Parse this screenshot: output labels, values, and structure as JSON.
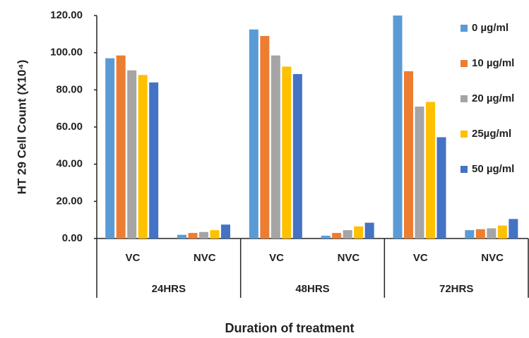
{
  "chart_data": {
    "type": "bar",
    "y_label": "HT 29 Cell Count (X10⁴)",
    "x_label": "Duration of treatment",
    "categories": [
      "VC",
      "NVC",
      "VC",
      "NVC",
      "VC",
      "NVC"
    ],
    "groups": [
      "24HRS",
      "48HRS",
      "72HRS"
    ],
    "series": [
      {
        "name": "0 µg/ml",
        "color": "#5b9bd5",
        "values": [
          97,
          2,
          112.5,
          1.5,
          120,
          4.5
        ]
      },
      {
        "name": "10 µg/ml",
        "color": "#ed7d31",
        "values": [
          98.5,
          3,
          109,
          3,
          90,
          5
        ]
      },
      {
        "name": "20 µg/ml",
        "color": "#a5a5a5",
        "values": [
          90.5,
          3.5,
          98.5,
          4.5,
          71,
          5.5
        ]
      },
      {
        "name": "25µg/ml",
        "color": "#ffc000",
        "values": [
          88,
          4.5,
          92.5,
          6.5,
          73.5,
          7
        ]
      },
      {
        "name": "50 µg/ml",
        "color": "#4472c4",
        "values": [
          84,
          7.5,
          88.5,
          8.5,
          54.5,
          10.5
        ]
      }
    ],
    "ylim": [
      0,
      120
    ],
    "yticks": [
      {
        "value": 0,
        "label": "0.00"
      },
      {
        "value": 20,
        "label": "20.00"
      },
      {
        "value": 40,
        "label": "40.00"
      },
      {
        "value": 60,
        "label": "60.00"
      },
      {
        "value": 80,
        "label": "80.00"
      },
      {
        "value": 100,
        "label": "100.00"
      },
      {
        "value": 120,
        "label": "120.00"
      }
    ],
    "legend": "right"
  }
}
